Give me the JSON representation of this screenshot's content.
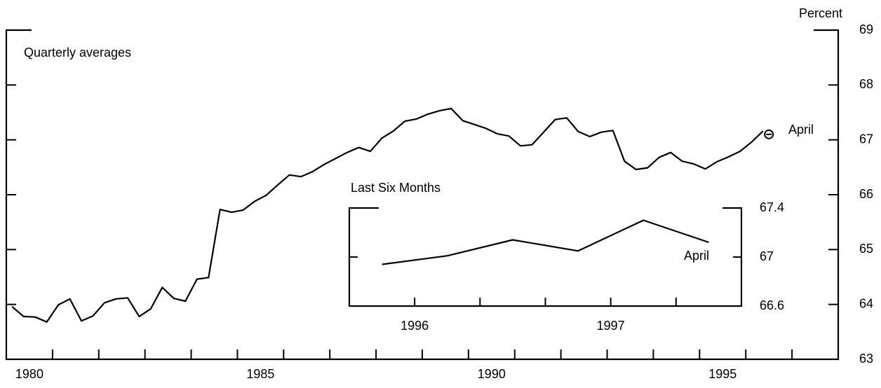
{
  "chart_data": [
    {
      "type": "line",
      "axis_label": "Percent",
      "annotation": "Quarterly averages",
      "point_label": "April",
      "color": "#000000",
      "x": [
        1980.125,
        1980.375,
        1980.625,
        1980.875,
        1981.125,
        1981.375,
        1981.625,
        1981.875,
        1982.125,
        1982.375,
        1982.625,
        1982.875,
        1983.125,
        1983.375,
        1983.625,
        1983.875,
        1984.125,
        1984.375,
        1984.625,
        1984.875,
        1985.125,
        1985.375,
        1985.625,
        1985.875,
        1986.125,
        1986.375,
        1986.625,
        1986.875,
        1987.125,
        1987.375,
        1987.625,
        1987.875,
        1988.125,
        1988.375,
        1988.625,
        1988.875,
        1989.125,
        1989.375,
        1989.625,
        1989.875,
        1990.125,
        1990.375,
        1990.625,
        1990.875,
        1991.125,
        1991.375,
        1991.625,
        1991.875,
        1992.125,
        1992.375,
        1992.625,
        1992.875,
        1993.125,
        1993.375,
        1993.625,
        1993.875,
        1994.125,
        1994.375,
        1994.625,
        1994.875,
        1995.125,
        1995.375,
        1995.625,
        1995.875,
        1996.125,
        1996.375
      ],
      "values": [
        63.96,
        63.78,
        63.77,
        63.68,
        63.99,
        64.1,
        63.7,
        63.79,
        64.03,
        64.1,
        64.12,
        63.78,
        63.92,
        64.31,
        64.11,
        64.06,
        64.46,
        64.49,
        65.73,
        65.68,
        65.72,
        65.88,
        65.99,
        66.18,
        66.36,
        66.33,
        66.42,
        66.55,
        66.66,
        66.77,
        66.86,
        66.79,
        67.03,
        67.16,
        67.34,
        67.38,
        67.47,
        67.53,
        67.57,
        67.35,
        67.28,
        67.21,
        67.11,
        67.07,
        66.89,
        66.91,
        67.14,
        67.37,
        67.4,
        67.15,
        67.06,
        67.14,
        67.17,
        66.61,
        66.46,
        66.49,
        66.68,
        66.77,
        66.61,
        66.56,
        66.47,
        66.6,
        66.69,
        66.79,
        66.96,
        67.16
      ],
      "point": {
        "x": 1996.5,
        "value": 67.1
      },
      "xlim": [
        1980,
        1998
      ],
      "xticks": [
        {
          "value": 1980.5,
          "label": "1980"
        },
        {
          "value": 1985.5,
          "label": "1985"
        },
        {
          "value": 1990.5,
          "label": "1990"
        },
        {
          "value": 1995.5,
          "label": "1995"
        }
      ],
      "ylim": [
        63,
        69
      ],
      "yticks": [
        63,
        64,
        65,
        66,
        67,
        68,
        69
      ]
    },
    {
      "type": "line",
      "title": "Last Six Months",
      "annotation": "April",
      "color": "#000000",
      "categories": [
        null,
        null,
        null,
        null,
        null,
        null
      ],
      "values": [
        66.94,
        67.01,
        67.14,
        67.05,
        67.3,
        67.12
      ],
      "xticks": [
        {
          "value": 0.5,
          "label": "1996"
        },
        {
          "value": 3.5,
          "label": "1997"
        }
      ],
      "ylim": [
        66.6,
        67.4
      ],
      "yticks": [
        66.6,
        67,
        67.4
      ]
    }
  ]
}
